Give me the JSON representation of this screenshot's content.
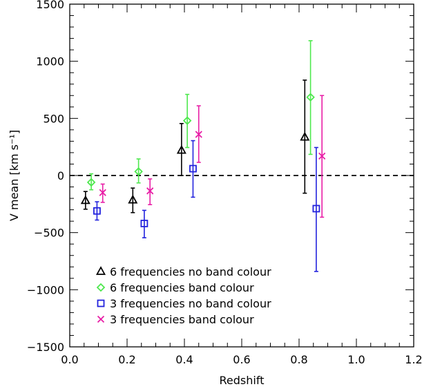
{
  "chart_data": {
    "type": "scatter",
    "title": "",
    "xlabel": "Redshift",
    "ylabel": "V mean [km s⁻¹]",
    "xlim": [
      0.0,
      1.2
    ],
    "ylim": [
      -1500,
      1500
    ],
    "xticks": [
      0.0,
      0.2,
      0.4,
      0.6,
      0.8,
      1.0,
      1.2
    ],
    "xtick_labels": [
      "0.0",
      "0.2",
      "0.4",
      "0.6",
      "0.8",
      "1.0",
      "1.2"
    ],
    "yticks": [
      -1500,
      -1000,
      -500,
      0,
      500,
      1000,
      1500
    ],
    "ytick_labels": [
      "−1500",
      "−1000",
      "−500",
      "0",
      "500",
      "1000",
      "1500"
    ],
    "grid": false,
    "reference_line": {
      "y": 0,
      "style": "dashed",
      "color": "#000000"
    },
    "legend_position": "bottom-left",
    "series": [
      {
        "name": "6 frequencies no band colour",
        "marker": "triangle",
        "color": "#000000",
        "points": [
          {
            "x": 0.055,
            "y": -220,
            "lo": -295,
            "hi": -140
          },
          {
            "x": 0.22,
            "y": -215,
            "lo": -325,
            "hi": -110
          },
          {
            "x": 0.39,
            "y": 220,
            "lo": 0,
            "hi": 455
          },
          {
            "x": 0.82,
            "y": 335,
            "lo": -155,
            "hi": 835
          }
        ]
      },
      {
        "name": "6 frequencies band colour",
        "marker": "diamond",
        "color": "#4ee84e",
        "points": [
          {
            "x": 0.075,
            "y": -60,
            "lo": -125,
            "hi": 15
          },
          {
            "x": 0.24,
            "y": 35,
            "lo": -65,
            "hi": 145
          },
          {
            "x": 0.41,
            "y": 480,
            "lo": 245,
            "hi": 710
          },
          {
            "x": 0.84,
            "y": 685,
            "lo": 185,
            "hi": 1180
          }
        ]
      },
      {
        "name": "3 frequencies no band colour",
        "marker": "square",
        "color": "#2222dd",
        "points": [
          {
            "x": 0.095,
            "y": -310,
            "lo": -390,
            "hi": -230
          },
          {
            "x": 0.26,
            "y": -420,
            "lo": -545,
            "hi": -305
          },
          {
            "x": 0.43,
            "y": 60,
            "lo": -190,
            "hi": 305
          },
          {
            "x": 0.86,
            "y": -290,
            "lo": -840,
            "hi": 245
          }
        ]
      },
      {
        "name": "3 frequencies band colour",
        "marker": "x",
        "color": "#e81ea6",
        "points": [
          {
            "x": 0.115,
            "y": -150,
            "lo": -235,
            "hi": -75
          },
          {
            "x": 0.28,
            "y": -135,
            "lo": -255,
            "hi": -30
          },
          {
            "x": 0.45,
            "y": 360,
            "lo": 115,
            "hi": 610
          },
          {
            "x": 0.88,
            "y": 170,
            "lo": -365,
            "hi": 700
          }
        ]
      }
    ]
  }
}
